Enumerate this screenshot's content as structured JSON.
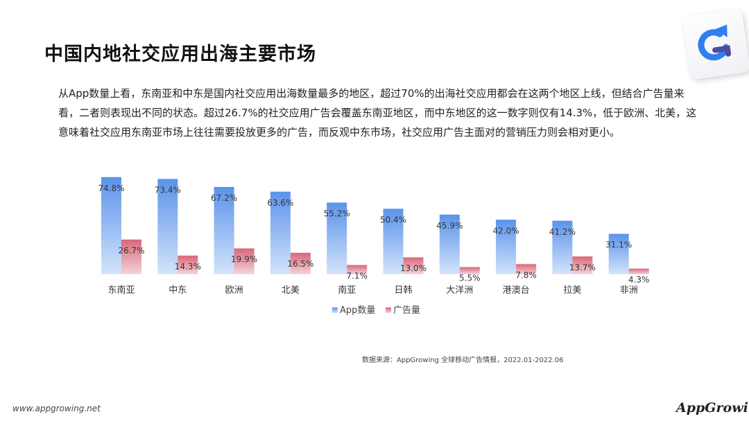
{
  "slide": {
    "title": "中国内地社交应用出海主要市场",
    "paragraph": "从App数量上看，东南亚和中东是国内社交应用出海数量最多的地区，超过70%的出海社交应用都会在这两个地区上线，但结合广告量来看，二者则表现出不同的状态。超过26.7%的社交应用广告会覆盖东南亚地区，而中东地区的这一数字则仅有14.3%，低于欧洲、北美，这意味着社交应用东南亚市场上往往需要投放更多的广告，而反观中东市场，社交应用广告主面对的营销压力则会相对更小。",
    "source": "数据来源：AppGrowing 全球移动广告情报，2022.01-2022.06",
    "footer_url": "www.appgrowing.net",
    "footer_brand": "AppGrowing",
    "logo_icon": "appgrowing-logo-icon"
  },
  "colors": {
    "app_top": "#5b93ea",
    "app_bottom": "#d3e3fb",
    "ad_top": "#d9677a",
    "ad_bottom": "#f5d3d8"
  },
  "chart_data": {
    "type": "bar",
    "categories": [
      "东南亚",
      "中东",
      "欧洲",
      "北美",
      "南亚",
      "日韩",
      "大洋洲",
      "港澳台",
      "拉美",
      "非洲"
    ],
    "series": [
      {
        "name": "App数量",
        "values": [
          74.8,
          73.4,
          67.2,
          63.6,
          55.2,
          50.4,
          45.9,
          42.0,
          41.2,
          31.1
        ],
        "labels": [
          "74.8%",
          "73.4%",
          "67.2%",
          "63.6%",
          "55.2%",
          "50.4%",
          "45.9%",
          "42.0%",
          "41.2%",
          "31.1%"
        ]
      },
      {
        "name": "广告量",
        "values": [
          26.7,
          14.3,
          19.9,
          16.5,
          7.1,
          13.0,
          5.5,
          7.8,
          13.7,
          4.3
        ],
        "labels": [
          "26.7%",
          "14.3%",
          "19.9%",
          "16.5%",
          "7.1%",
          "13.0%",
          "5.5%",
          "7.8%",
          "13.7%",
          "4.3%"
        ]
      }
    ],
    "ylim": [
      0,
      80
    ],
    "grid": false,
    "legend": "bottom"
  }
}
